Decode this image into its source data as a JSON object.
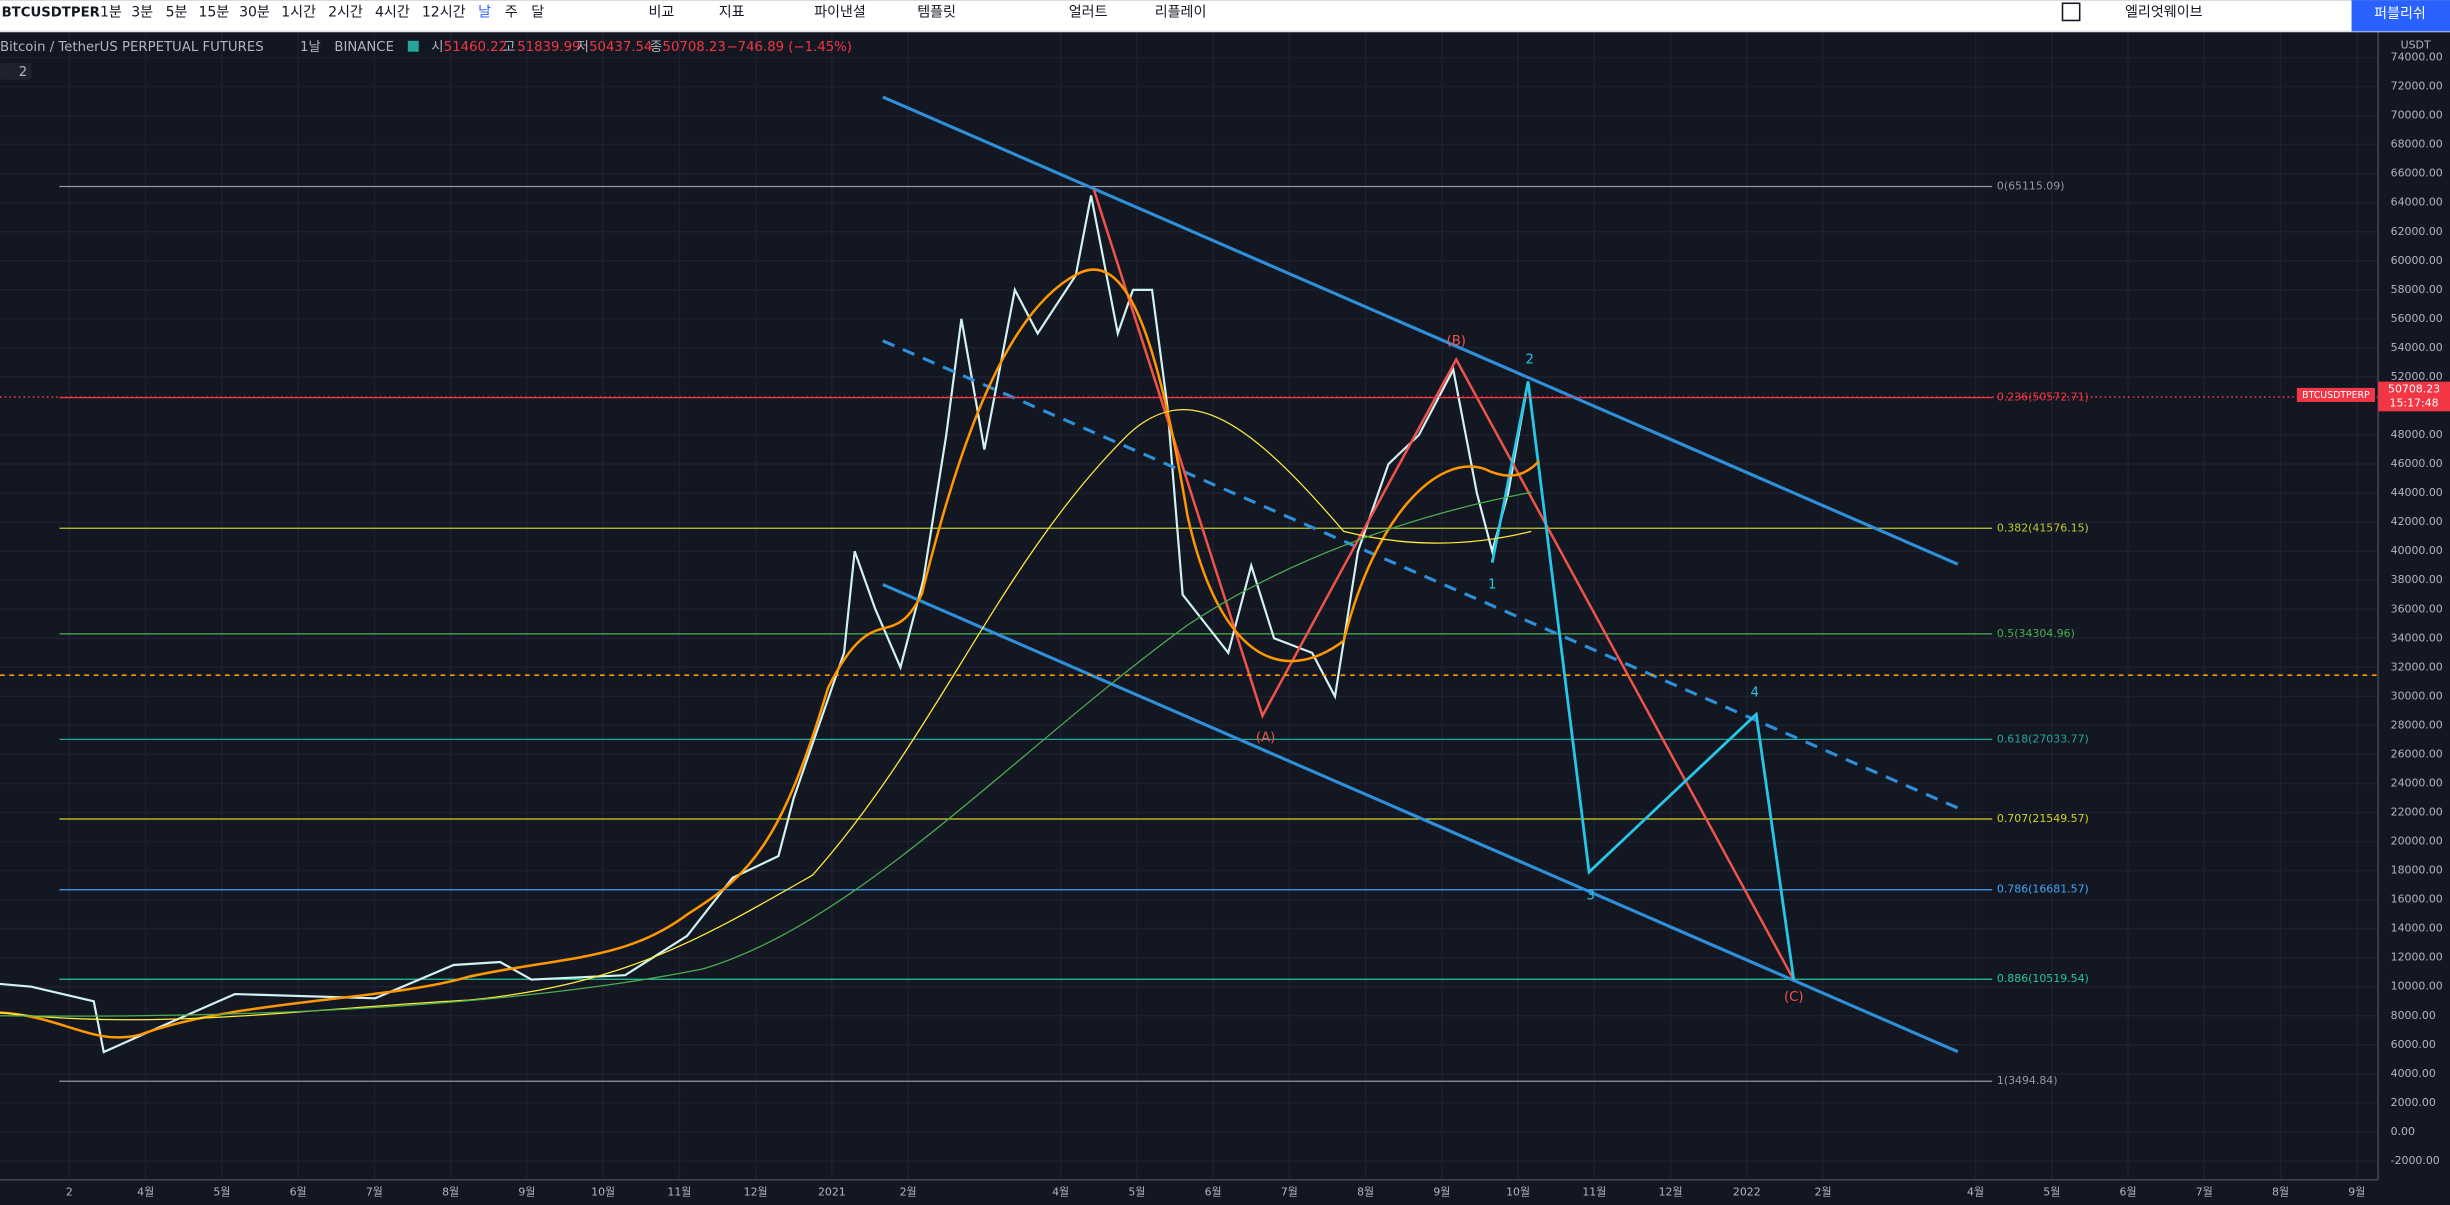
{
  "toolbar": {
    "symbol": "BTCUSDTPER",
    "intervals": [
      "1분",
      "3분",
      "5분",
      "15분",
      "30분",
      "1시간",
      "2시간",
      "4시간",
      "12시간",
      "날",
      "주",
      "달"
    ],
    "buttons": [
      "비교",
      "지표",
      "파이낸셜",
      "템플릿",
      "얼러트",
      "리플레이"
    ],
    "layout_name": "엘리엇웨이브",
    "publish": "퍼블리쉬"
  },
  "legend": {
    "title": "Bitcoin / TetherUS PERPETUAL FUTURES",
    "interval": "1날",
    "exchange": "BINANCE",
    "open": {
      "label": "시",
      "value": "51460.22"
    },
    "high": {
      "label": "고",
      "value": "51839.99"
    },
    "low": {
      "label": "저",
      "value": "50437.54"
    },
    "close": {
      "label": "종",
      "value": "50708.23"
    },
    "change": "−746.89 (−1.45%)",
    "indicators": "2"
  },
  "chart": {
    "type": "line",
    "unit": "USDT",
    "grid": true,
    "ylim": [
      -3300,
      75800
    ],
    "xlim": [
      1.09,
      32.28
    ],
    "yticks": [
      {
        "value": 74000,
        "label": "74000.00"
      },
      {
        "value": 72000,
        "label": "72000.00"
      },
      {
        "value": 70000,
        "label": "70000.00"
      },
      {
        "value": 68000,
        "label": "68000.00"
      },
      {
        "value": 66000,
        "label": "66000.00"
      },
      {
        "value": 64000,
        "label": "64000.00"
      },
      {
        "value": 62000,
        "label": "62000.00"
      },
      {
        "value": 60000,
        "label": "60000.00"
      },
      {
        "value": 58000,
        "label": "58000.00"
      },
      {
        "value": 56000,
        "label": "56000.00"
      },
      {
        "value": 54000,
        "label": "54000.00"
      },
      {
        "value": 52000,
        "label": "52000.00"
      },
      {
        "value": 48000,
        "label": "48000.00"
      },
      {
        "value": 46000,
        "label": "46000.00"
      },
      {
        "value": 44000,
        "label": "44000.00"
      },
      {
        "value": 42000,
        "label": "42000.00"
      },
      {
        "value": 40000,
        "label": "40000.00"
      },
      {
        "value": 38000,
        "label": "38000.00"
      },
      {
        "value": 36000,
        "label": "36000.00"
      },
      {
        "value": 34000,
        "label": "34000.00"
      },
      {
        "value": 32000,
        "label": "32000.00"
      },
      {
        "value": 30000,
        "label": "30000.00"
      },
      {
        "value": 28000,
        "label": "28000.00"
      },
      {
        "value": 26000,
        "label": "26000.00"
      },
      {
        "value": 24000,
        "label": "24000.00"
      },
      {
        "value": 22000,
        "label": "22000.00"
      },
      {
        "value": 20000,
        "label": "20000.00"
      },
      {
        "value": 18000,
        "label": "18000.00"
      },
      {
        "value": 16000,
        "label": "16000.00"
      },
      {
        "value": 14000,
        "label": "14000.00"
      },
      {
        "value": 12000,
        "label": "12000.00"
      },
      {
        "value": 10000,
        "label": "10000.00"
      },
      {
        "value": 8000,
        "label": "8000.00"
      },
      {
        "value": 6000,
        "label": "6000.00"
      },
      {
        "value": 4000,
        "label": "4000.00"
      },
      {
        "value": 2000,
        "label": "2000.00"
      },
      {
        "value": 0,
        "label": "0.00"
      },
      {
        "value": -2000,
        "label": "-2000.00"
      }
    ],
    "xticks": [
      {
        "value": 2,
        "label": "2"
      },
      {
        "value": 3,
        "label": "4월"
      },
      {
        "value": 4,
        "label": "5월"
      },
      {
        "value": 5,
        "label": "6월"
      },
      {
        "value": 6,
        "label": "7월"
      },
      {
        "value": 7,
        "label": "8월"
      },
      {
        "value": 8,
        "label": "9월"
      },
      {
        "value": 9,
        "label": "10월"
      },
      {
        "value": 10,
        "label": "11월"
      },
      {
        "value": 11,
        "label": "12월"
      },
      {
        "value": 12,
        "label": "2021"
      },
      {
        "value": 13,
        "label": "2월"
      },
      {
        "value": 15,
        "label": "4월"
      },
      {
        "value": 16,
        "label": "5월"
      },
      {
        "value": 17,
        "label": "6월"
      },
      {
        "value": 18,
        "label": "7월"
      },
      {
        "value": 19,
        "label": "8월"
      },
      {
        "value": 20,
        "label": "9월"
      },
      {
        "value": 21,
        "label": "10월"
      },
      {
        "value": 22,
        "label": "11월"
      },
      {
        "value": 23,
        "label": "12월"
      },
      {
        "value": 24,
        "label": "2022"
      },
      {
        "value": 25,
        "label": "2월"
      },
      {
        "value": 27,
        "label": "4월"
      },
      {
        "value": 28,
        "label": "5월"
      },
      {
        "value": 29,
        "label": "6월"
      },
      {
        "value": 30,
        "label": "7월"
      },
      {
        "value": 31,
        "label": "8월"
      },
      {
        "value": 32,
        "label": "9월"
      }
    ],
    "price_line": {
      "color": "#d1f2f2",
      "x": [
        1.09,
        1.5,
        2.32,
        2.45,
        3.0,
        4.17,
        6.01,
        7.04,
        7.65,
        8.06,
        9.29,
        10.1,
        10.7,
        11.3,
        11.5,
        12.16,
        12.3,
        12.57,
        12.9,
        13.2,
        13.5,
        13.7,
        14.0,
        14.4,
        14.7,
        15.2,
        15.4,
        15.75,
        15.95,
        16.2,
        16.4,
        16.6,
        16.9,
        17.2,
        17.5,
        17.8,
        18.3,
        18.6,
        18.9,
        19.3,
        19.7,
        20.15,
        20.46,
        20.66,
        20.87,
        21.1
      ],
      "values": [
        10200,
        10000,
        9000,
        5500,
        6800,
        9500,
        9200,
        11500,
        11700,
        10500,
        10800,
        13500,
        17500,
        19000,
        23000,
        33000,
        40000,
        36000,
        32000,
        38000,
        48000,
        56000,
        47000,
        58000,
        55000,
        59000,
        64500,
        55000,
        58000,
        58000,
        50000,
        37000,
        35000,
        33000,
        39000,
        34000,
        33000,
        30000,
        40000,
        46000,
        48000,
        52500,
        44000,
        40000,
        44000,
        50708
      ]
    },
    "fib_levels": [
      {
        "label": "0(65115.09)",
        "price": 65115.09,
        "color": "#9598a1"
      },
      {
        "label": "0.236(50572.71)",
        "price": 50572.71,
        "color": "#f23645"
      },
      {
        "label": "0.382(41576.15)",
        "price": 41576.15,
        "color": "#c0ca33"
      },
      {
        "label": "0.5(34304.96)",
        "price": 34304.96,
        "color": "#4caf50"
      },
      {
        "label": "0.618(27033.77)",
        "price": 27033.77,
        "color": "#26a69a"
      },
      {
        "label": "0.707(21549.57)",
        "price": 21549.57,
        "color": "#d4d422"
      },
      {
        "label": "0.786(16681.57)",
        "price": 16681.57,
        "color": "#42a5f5"
      },
      {
        "label": "0.886(10519.54)",
        "price": 10519.54,
        "color": "#26c6a0"
      },
      {
        "label": "1(3494.84)",
        "price": 3494.84,
        "color": "#9598a1"
      }
    ],
    "wave_labels": [
      "(A)",
      "(B)",
      "(C)",
      "1",
      "2",
      "3",
      "4"
    ],
    "last_price": {
      "symbol": "BTCUSDTPERP",
      "price": 50708.23,
      "countdown": "15:17:48"
    }
  }
}
